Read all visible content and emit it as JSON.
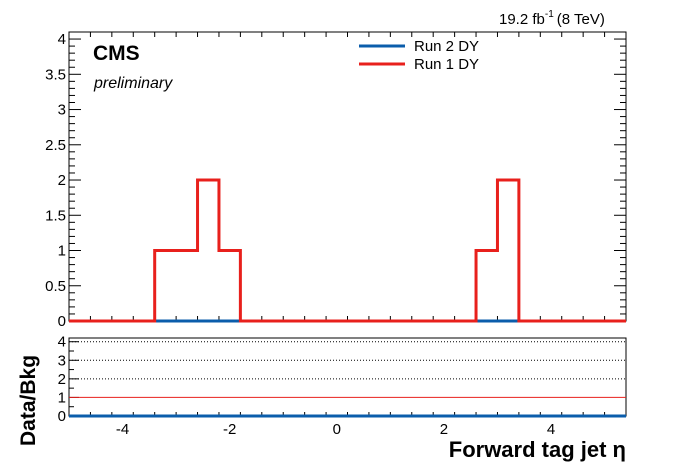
{
  "chart_data": [
    {
      "type": "line",
      "style": "step-histogram",
      "bin_edges": [
        -5.0,
        -4.6,
        -4.2,
        -3.8,
        -3.4,
        -3.0,
        -2.6,
        -2.2,
        -1.8,
        -1.4,
        -1.0,
        -0.6,
        -0.2,
        0.2,
        0.6,
        1.0,
        1.4,
        1.8,
        2.2,
        2.6,
        3.0,
        3.4,
        3.8,
        4.2,
        4.6,
        5.0,
        5.4
      ],
      "series": [
        {
          "name": "Run 2 DY",
          "color": "#0b5dab",
          "values": [
            0,
            0,
            0,
            0,
            0,
            0,
            0,
            0,
            0,
            0,
            0,
            0,
            0,
            0,
            0,
            0,
            0,
            0,
            0,
            0,
            0,
            0,
            0,
            0,
            0,
            0
          ]
        },
        {
          "name": "Run 1 DY",
          "color": "#e8201c",
          "values": [
            0,
            0,
            0,
            0,
            1,
            1,
            2,
            1,
            0,
            0,
            0,
            0,
            0,
            0,
            0,
            0,
            0,
            0,
            0,
            1,
            2,
            0,
            0,
            0,
            0,
            0
          ]
        }
      ],
      "xlim": [
        -5.0,
        5.4
      ],
      "ylim": [
        0,
        4.1
      ],
      "y_ticks": [
        "0",
        "0.5",
        "1",
        "1.5",
        "2",
        "2.5",
        "3",
        "3.5",
        "4"
      ],
      "x_ticks": [
        "-4",
        "-2",
        "0",
        "2",
        "4"
      ],
      "xlabel": "Forward tag jet η",
      "ylabel": "",
      "legend_position": "top-center",
      "experiment": "CMS",
      "status": "preliminary",
      "lumi_label": "19.2 fb",
      "lumi_exponent": "-1",
      "energy_label": "(8 TeV)"
    },
    {
      "type": "line",
      "panel": "ratio",
      "ylabel": "Data/Bkg",
      "ylim": [
        0,
        4.2
      ],
      "y_ticks": [
        "0",
        "1",
        "2",
        "3",
        "4"
      ],
      "reference_line": {
        "y": 1,
        "color": "#e8201c"
      },
      "gridlines_y": [
        2,
        3,
        4
      ],
      "baseline_color": "#0b5dab"
    }
  ]
}
